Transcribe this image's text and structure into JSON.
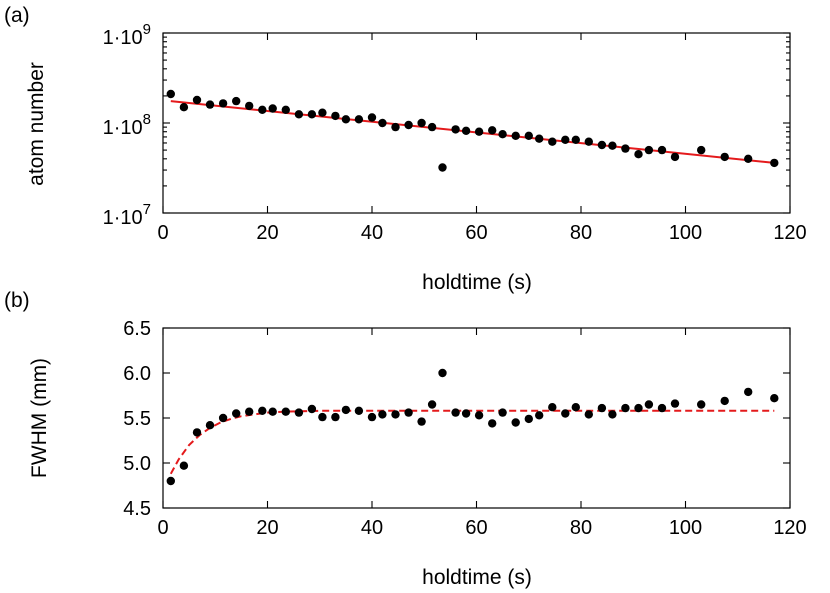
{
  "colors": {
    "fit": "#e41a1c",
    "points": "#000000",
    "axes": "#000000"
  },
  "chart_data": [
    {
      "type": "scatter",
      "panel_label": "(a)",
      "xlabel": "holdtime (s)",
      "ylabel": "atom number",
      "xlim": [
        0,
        120
      ],
      "ylim": [
        10000000,
        1000000000
      ],
      "yscale": "log",
      "xticks": [
        0,
        20,
        40,
        60,
        80,
        100,
        120
      ],
      "xtick_labels": [
        "0",
        "20",
        "40",
        "60",
        "80",
        "100",
        "120"
      ],
      "yticks": [
        10000000,
        100000000,
        1000000000
      ],
      "ytick_labels": [
        {
          "base": "1·10",
          "exp": "7"
        },
        {
          "base": "1·10",
          "exp": "8"
        },
        {
          "base": "1·10",
          "exp": "9"
        }
      ],
      "grid": false,
      "series": [
        {
          "kind": "points",
          "x": [
            1.5,
            4,
            6.5,
            9,
            11.5,
            14,
            16.5,
            19,
            21,
            23.5,
            26,
            28.5,
            30.5,
            33,
            35,
            37.5,
            40,
            42,
            44.5,
            47,
            49.5,
            51.5,
            53.5,
            56,
            58,
            60.5,
            63,
            65,
            67.5,
            70,
            72,
            74.5,
            77,
            79,
            81.5,
            84,
            86,
            88.5,
            91,
            93,
            95.5,
            98,
            103,
            107.5,
            112,
            117
          ],
          "y": [
            210000000,
            150000000,
            180000000,
            160000000,
            165000000,
            175000000,
            155000000,
            140000000,
            145000000,
            140000000,
            125000000,
            125000000,
            130000000,
            120000000,
            110000000,
            110000000,
            115000000,
            100000000,
            90000000,
            95000000,
            100000000,
            90000000,
            32000000,
            85000000,
            82000000,
            80000000,
            83000000,
            75000000,
            72000000,
            72000000,
            67000000,
            62000000,
            65000000,
            65000000,
            62000000,
            57000000,
            56000000,
            52000000,
            45000000,
            50000000,
            50000000,
            42000000,
            50000000,
            42000000,
            40000000,
            36000000
          ]
        },
        {
          "kind": "fit",
          "style": "solid",
          "x": [
            1.5,
            117
          ],
          "y": [
            175000000,
            36000000
          ]
        }
      ]
    },
    {
      "type": "scatter",
      "panel_label": "(b)",
      "xlabel": "holdtime (s)",
      "ylabel": "FWHM (mm)",
      "xlim": [
        0,
        120
      ],
      "ylim": [
        4.5,
        6.5
      ],
      "yscale": "linear",
      "xticks": [
        0,
        20,
        40,
        60,
        80,
        100,
        120
      ],
      "xtick_labels": [
        "0",
        "20",
        "40",
        "60",
        "80",
        "100",
        "120"
      ],
      "yticks": [
        4.5,
        5.0,
        5.5,
        6.0,
        6.5
      ],
      "ytick_labels": [
        "4.5",
        "5.0",
        "5.5",
        "6.0",
        "6.5"
      ],
      "grid": false,
      "series": [
        {
          "kind": "points",
          "x": [
            1.5,
            4,
            6.5,
            9,
            11.5,
            14,
            16.5,
            19,
            21,
            23.5,
            26,
            28.5,
            30.5,
            33,
            35,
            37.5,
            40,
            42,
            44.5,
            47,
            49.5,
            51.5,
            53.5,
            56,
            58,
            60.5,
            63,
            65,
            67.5,
            70,
            72,
            74.5,
            77,
            79,
            81.5,
            84,
            86,
            88.5,
            91,
            93,
            95.5,
            98,
            103,
            107.5,
            112,
            117
          ],
          "y": [
            4.8,
            4.97,
            5.34,
            5.42,
            5.5,
            5.55,
            5.57,
            5.58,
            5.57,
            5.57,
            5.56,
            5.6,
            5.51,
            5.51,
            5.59,
            5.58,
            5.51,
            5.54,
            5.54,
            5.56,
            5.46,
            5.65,
            6.0,
            5.56,
            5.55,
            5.53,
            5.44,
            5.56,
            5.45,
            5.49,
            5.53,
            5.62,
            5.55,
            5.62,
            5.54,
            5.61,
            5.54,
            5.61,
            5.61,
            5.65,
            5.61,
            5.66,
            5.65,
            5.69,
            5.79,
            5.72
          ]
        },
        {
          "kind": "fit",
          "style": "dashed",
          "x": [
            1.5,
            3,
            5,
            7,
            9,
            11,
            13,
            15,
            17.5,
            20,
            23,
            26,
            30,
            35,
            40,
            50,
            60,
            70,
            80,
            90,
            100,
            110,
            117
          ],
          "y": [
            4.88,
            5.04,
            5.2,
            5.31,
            5.39,
            5.45,
            5.49,
            5.52,
            5.54,
            5.56,
            5.57,
            5.575,
            5.58,
            5.58,
            5.58,
            5.58,
            5.58,
            5.58,
            5.58,
            5.58,
            5.58,
            5.58,
            5.58
          ]
        }
      ]
    }
  ]
}
